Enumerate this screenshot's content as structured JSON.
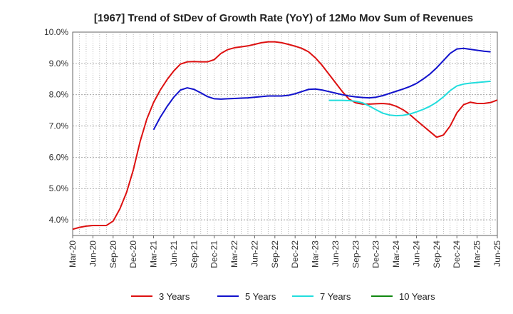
{
  "chart_data": {
    "type": "line",
    "title": "[1967]  Trend of StDev of Growth Rate (YoY) of 12Mo Mov Sum of Revenues",
    "xlabel": "",
    "ylabel": "",
    "ylim": [
      3.5,
      10.0
    ],
    "yticks": [
      4.0,
      5.0,
      6.0,
      7.0,
      8.0,
      9.0,
      10.0
    ],
    "ytick_labels": [
      "4.0%",
      "5.0%",
      "6.0%",
      "7.0%",
      "8.0%",
      "9.0%",
      "10.0%"
    ],
    "x_categories": [
      "Mar-20",
      "Jun-20",
      "Sep-20",
      "Dec-20",
      "Mar-21",
      "Jun-21",
      "Sep-21",
      "Dec-21",
      "Mar-22",
      "Jun-22",
      "Sep-22",
      "Dec-22",
      "Mar-23",
      "Jun-23",
      "Sep-23",
      "Dec-23",
      "Mar-24",
      "Jun-24",
      "Sep-24",
      "Dec-24",
      "Mar-25",
      "Jun-25"
    ],
    "grid": true,
    "legend_position": "bottom",
    "series": [
      {
        "name": "3 Years",
        "color": "#dd1111",
        "start_index": 0,
        "values": [
          3.7,
          3.76,
          3.8,
          3.82,
          3.82,
          3.82,
          3.96,
          4.35,
          4.88,
          5.6,
          6.5,
          7.22,
          7.75,
          8.15,
          8.48,
          8.76,
          8.98,
          9.05,
          9.06,
          9.05,
          9.05,
          9.12,
          9.32,
          9.44,
          9.5,
          9.53,
          9.56,
          9.61,
          9.66,
          9.69,
          9.69,
          9.66,
          9.61,
          9.55,
          9.48,
          9.37,
          9.18,
          8.94,
          8.66,
          8.38,
          8.1,
          7.86,
          7.74,
          7.7,
          7.7,
          7.71,
          7.72,
          7.7,
          7.63,
          7.52,
          7.37,
          7.18,
          7.0,
          6.82,
          6.64,
          6.71,
          7.0,
          7.42,
          7.68,
          7.76,
          7.72,
          7.72,
          7.75,
          7.83
        ]
      },
      {
        "name": "5 Years",
        "color": "#1111cc",
        "start_index": 12,
        "values": [
          6.88,
          7.28,
          7.62,
          7.92,
          8.15,
          8.22,
          8.17,
          8.06,
          7.94,
          7.87,
          7.86,
          7.87,
          7.88,
          7.89,
          7.9,
          7.92,
          7.94,
          7.96,
          7.96,
          7.96,
          7.98,
          8.03,
          8.1,
          8.17,
          8.18,
          8.15,
          8.1,
          8.05,
          8.0,
          7.96,
          7.93,
          7.91,
          7.9,
          7.92,
          7.97,
          8.04,
          8.11,
          8.18,
          8.26,
          8.36,
          8.5,
          8.66,
          8.86,
          9.09,
          9.32,
          9.46,
          9.48,
          9.45,
          9.42,
          9.39,
          9.37
        ]
      },
      {
        "name": "7 Years",
        "color": "#22dddd",
        "start_index": 38,
        "values": [
          7.82,
          7.82,
          7.82,
          7.81,
          7.79,
          7.74,
          7.64,
          7.52,
          7.41,
          7.35,
          7.33,
          7.34,
          7.38,
          7.45,
          7.53,
          7.63,
          7.76,
          7.93,
          8.13,
          8.28,
          8.34,
          8.37,
          8.39,
          8.41,
          8.43
        ]
      },
      {
        "name": "10 Years",
        "color": "#118811",
        "start_index": 0,
        "values": []
      }
    ]
  }
}
